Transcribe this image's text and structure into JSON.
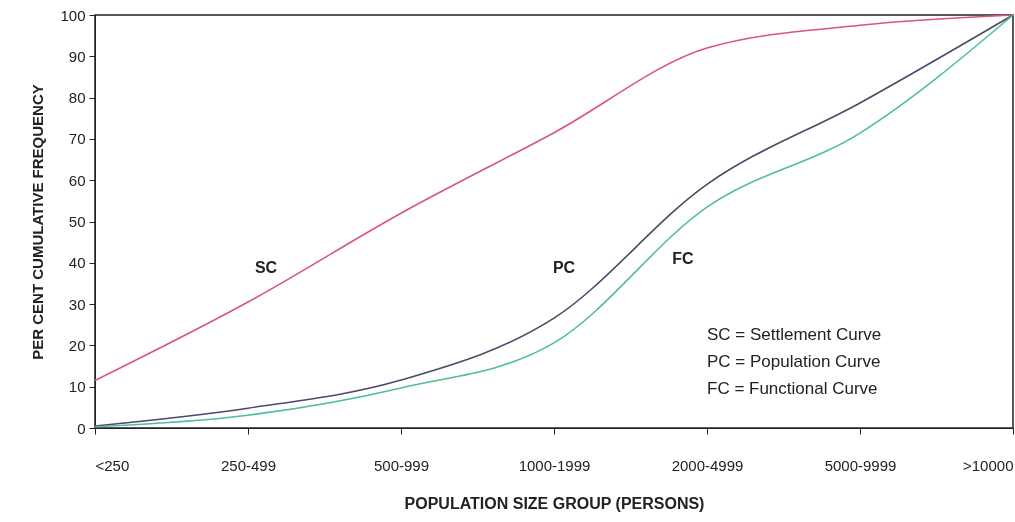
{
  "chart_data": {
    "type": "line",
    "xlabel": "POPULATION SIZE GROUP (PERSONS)",
    "ylabel": "PER CENT CUMULATIVE FREQUENCY",
    "categories": [
      "<250",
      "250-499",
      "500-999",
      "1000-1999",
      "2000-4999",
      "5000-9999",
      ">10000"
    ],
    "series": [
      {
        "name": "SC",
        "color": "#d9557a",
        "values": [
          11.5,
          30.5,
          52,
          71.5,
          92,
          97.5,
          100
        ]
      },
      {
        "name": "PC",
        "color": "#4a4a6a",
        "values": [
          0.5,
          4.8,
          11.6,
          26.6,
          59,
          78.7,
          100
        ]
      },
      {
        "name": "FC",
        "color": "#4fbf9a",
        "values": [
          0.3,
          3.1,
          9.7,
          20.6,
          53.5,
          71.4,
          100
        ]
      }
    ],
    "ylim": [
      0,
      100
    ],
    "yticks": [
      0,
      10,
      20,
      30,
      40,
      50,
      60,
      70,
      80,
      90,
      100
    ],
    "grid": false,
    "marker": "none",
    "line_style": "solid",
    "annotations": [
      "SC = Settlement Curve",
      "PC = Population Curve",
      "FC = Functional Curve"
    ]
  }
}
